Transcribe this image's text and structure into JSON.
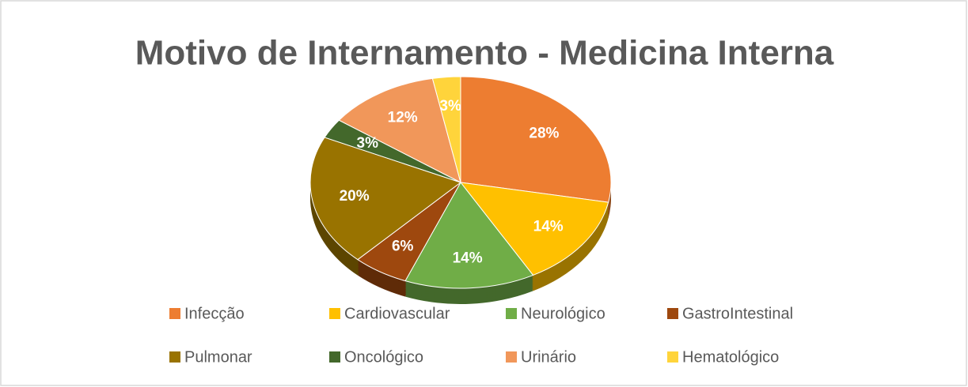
{
  "chart_data": {
    "type": "pie",
    "title": "Motivo de Internamento - Medicina Interna",
    "categories": [
      "Infecção",
      "Cardiovascular",
      "Neurológico",
      "GastroIntestinal",
      "Pulmonar",
      "Oncológico",
      "Urinário",
      "Hematológico"
    ],
    "values": [
      28,
      14,
      14,
      6,
      20,
      3,
      12,
      3
    ],
    "value_labels": [
      "28%",
      "14%",
      "14%",
      "6%",
      "20%",
      "3%",
      "12%",
      "3%"
    ],
    "colors": [
      "#ED7D31",
      "#FFC000",
      "#70AD47",
      "#9E480E",
      "#997300",
      "#43682B",
      "#F1975A",
      "#FFD43B"
    ],
    "legend": "bottom"
  }
}
